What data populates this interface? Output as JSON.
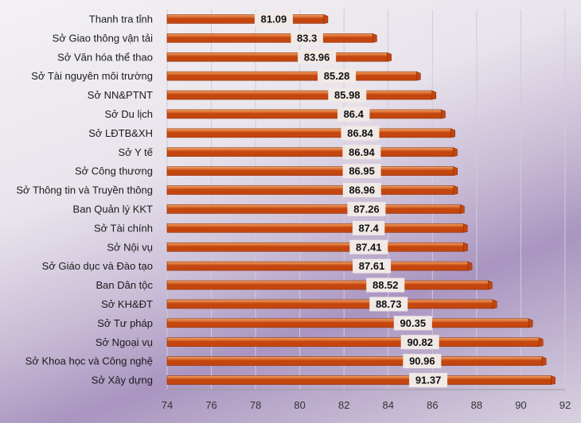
{
  "chart_data": {
    "type": "bar",
    "orientation": "horizontal",
    "categories": [
      "Thanh tra tỉnh",
      "Sở Giao thông vận tải",
      "Sở Văn hóa thể thao",
      "Sở Tài nguyên môi trường",
      "Sở NN&PTNT",
      "Sở Du lịch",
      "Sở LĐTB&XH",
      "Sở Y tế",
      "Sở Công thương",
      "Sở Thông tin và Truyền thông",
      "Ban Quản lý KKT",
      "Sở Tài chính",
      "Sở Nội vụ",
      "Sở Giáo dục và Đào tạo",
      "Ban Dân tộc",
      "Sở KH&ĐT",
      "Sở Tư pháp",
      "Sở Ngoại vụ",
      "Sở Khoa học và Công nghệ",
      "Sở Xây dựng"
    ],
    "values": [
      81.09,
      83.3,
      83.96,
      85.28,
      85.98,
      86.4,
      86.84,
      86.94,
      86.95,
      86.96,
      87.26,
      87.4,
      87.41,
      87.61,
      88.52,
      88.73,
      90.35,
      90.82,
      90.96,
      91.37
    ],
    "value_labels": [
      "81.09",
      "83.3",
      "83.96",
      "85.28",
      "85.98",
      "86.4",
      "86.84",
      "86.94",
      "86.95",
      "86.96",
      "87.26",
      "87.4",
      "87.41",
      "87.61",
      "88.52",
      "88.73",
      "90.35",
      "90.82",
      "90.96",
      "91.37"
    ],
    "xlim": [
      74,
      92
    ],
    "xticks": [
      74,
      76,
      78,
      80,
      82,
      84,
      86,
      88,
      90,
      92
    ],
    "grid": true,
    "legend": "none",
    "colors": {
      "bar_light": "#f7a868",
      "bar_dark": "#c4460f",
      "bar_edge": "#8a2c06",
      "label_box": "#f0e9e6",
      "grid": "#d0ccd4",
      "axis": "#999999"
    }
  }
}
